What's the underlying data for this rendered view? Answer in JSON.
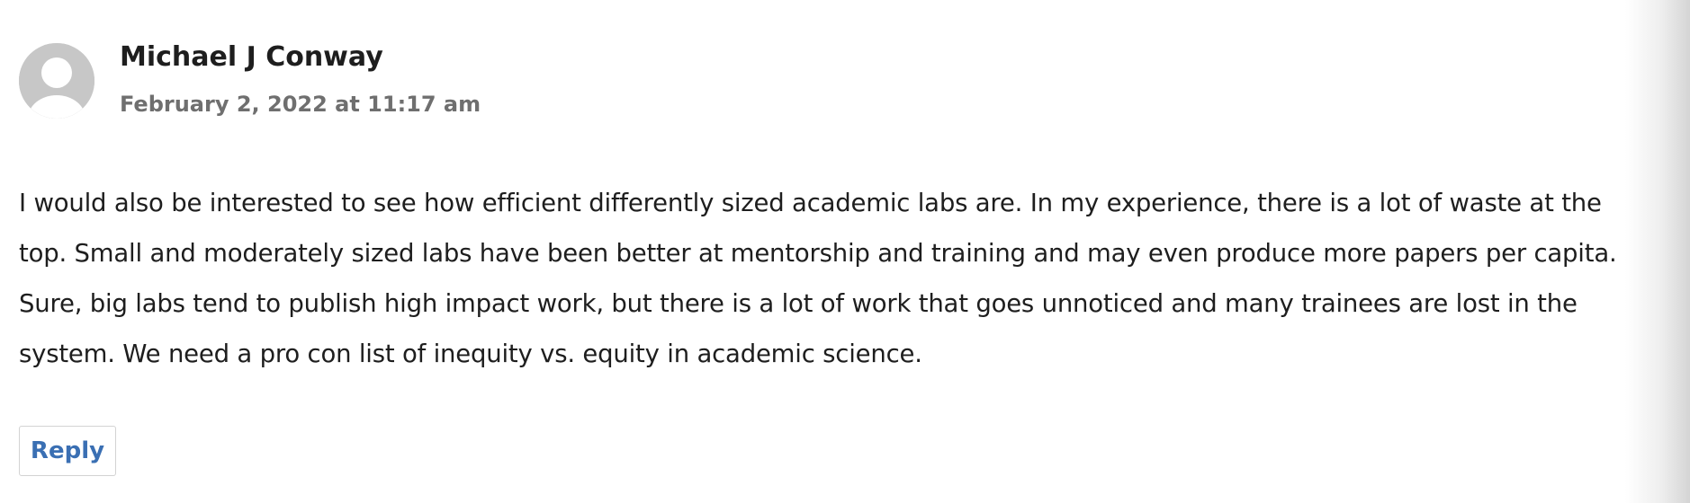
{
  "comment": {
    "author": "Michael J Conway",
    "date": "February 2, 2022 at 11:17 am",
    "avatar_icon": "default-user-icon",
    "body": "I would also be interested to see how efficient differently sized academic labs are. In my experience, there is a lot of waste at the top. Small and moderately sized labs have been better at mentorship and training and may even produce more papers per capita. Sure, big labs tend to publish high impact work, but there is a lot of work that goes unnoticed and many trainees are lost in the system. We need a pro con list of inequity vs. equity in academic science.",
    "reply_label": "Reply"
  },
  "colors": {
    "text": "#1e1e1e",
    "meta": "#6f6f6f",
    "link": "#3a6fb3",
    "avatar": "#c7c7c7"
  }
}
